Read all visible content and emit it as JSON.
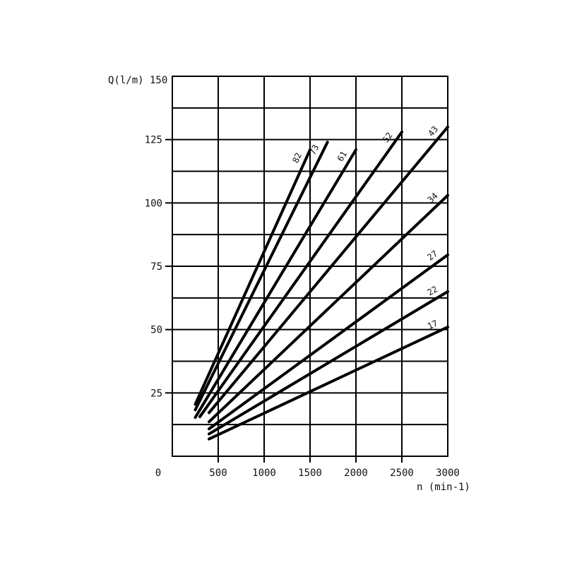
{
  "chart_data": {
    "type": "line",
    "ylabel": "Q(l/m)",
    "xlabel": "n (min-1)",
    "xlim": [
      0,
      3000
    ],
    "ylim": [
      0,
      150
    ],
    "x_ticks": [
      "0",
      "500",
      "1000",
      "1500",
      "2000",
      "2500",
      "3000"
    ],
    "y_ticks": [
      "25",
      "50",
      "75",
      "100",
      "125",
      "150"
    ],
    "grid": true,
    "series": [
      {
        "name": "82",
        "points": [
          [
            250,
            20.5
          ],
          [
            1500,
            121
          ]
        ]
      },
      {
        "name": "73",
        "points": [
          [
            250,
            18.3
          ],
          [
            1690,
            124
          ]
        ]
      },
      {
        "name": "61",
        "points": [
          [
            250,
            15.3
          ],
          [
            2000,
            121
          ]
        ]
      },
      {
        "name": "52",
        "points": [
          [
            300,
            15.6
          ],
          [
            2500,
            128
          ]
        ]
      },
      {
        "name": "43",
        "points": [
          [
            400,
            17.2
          ],
          [
            3000,
            130
          ]
        ]
      },
      {
        "name": "34",
        "points": [
          [
            400,
            13.6
          ],
          [
            3000,
            103
          ]
        ]
      },
      {
        "name": "27",
        "points": [
          [
            400,
            10.8
          ],
          [
            3000,
            79.5
          ]
        ]
      },
      {
        "name": "22",
        "points": [
          [
            400,
            8.8
          ],
          [
            3000,
            65
          ]
        ]
      },
      {
        "name": "17",
        "points": [
          [
            400,
            6.8
          ],
          [
            3000,
            51
          ]
        ]
      }
    ],
    "colors": {
      "line": "#000000",
      "grid": "#000000"
    }
  }
}
